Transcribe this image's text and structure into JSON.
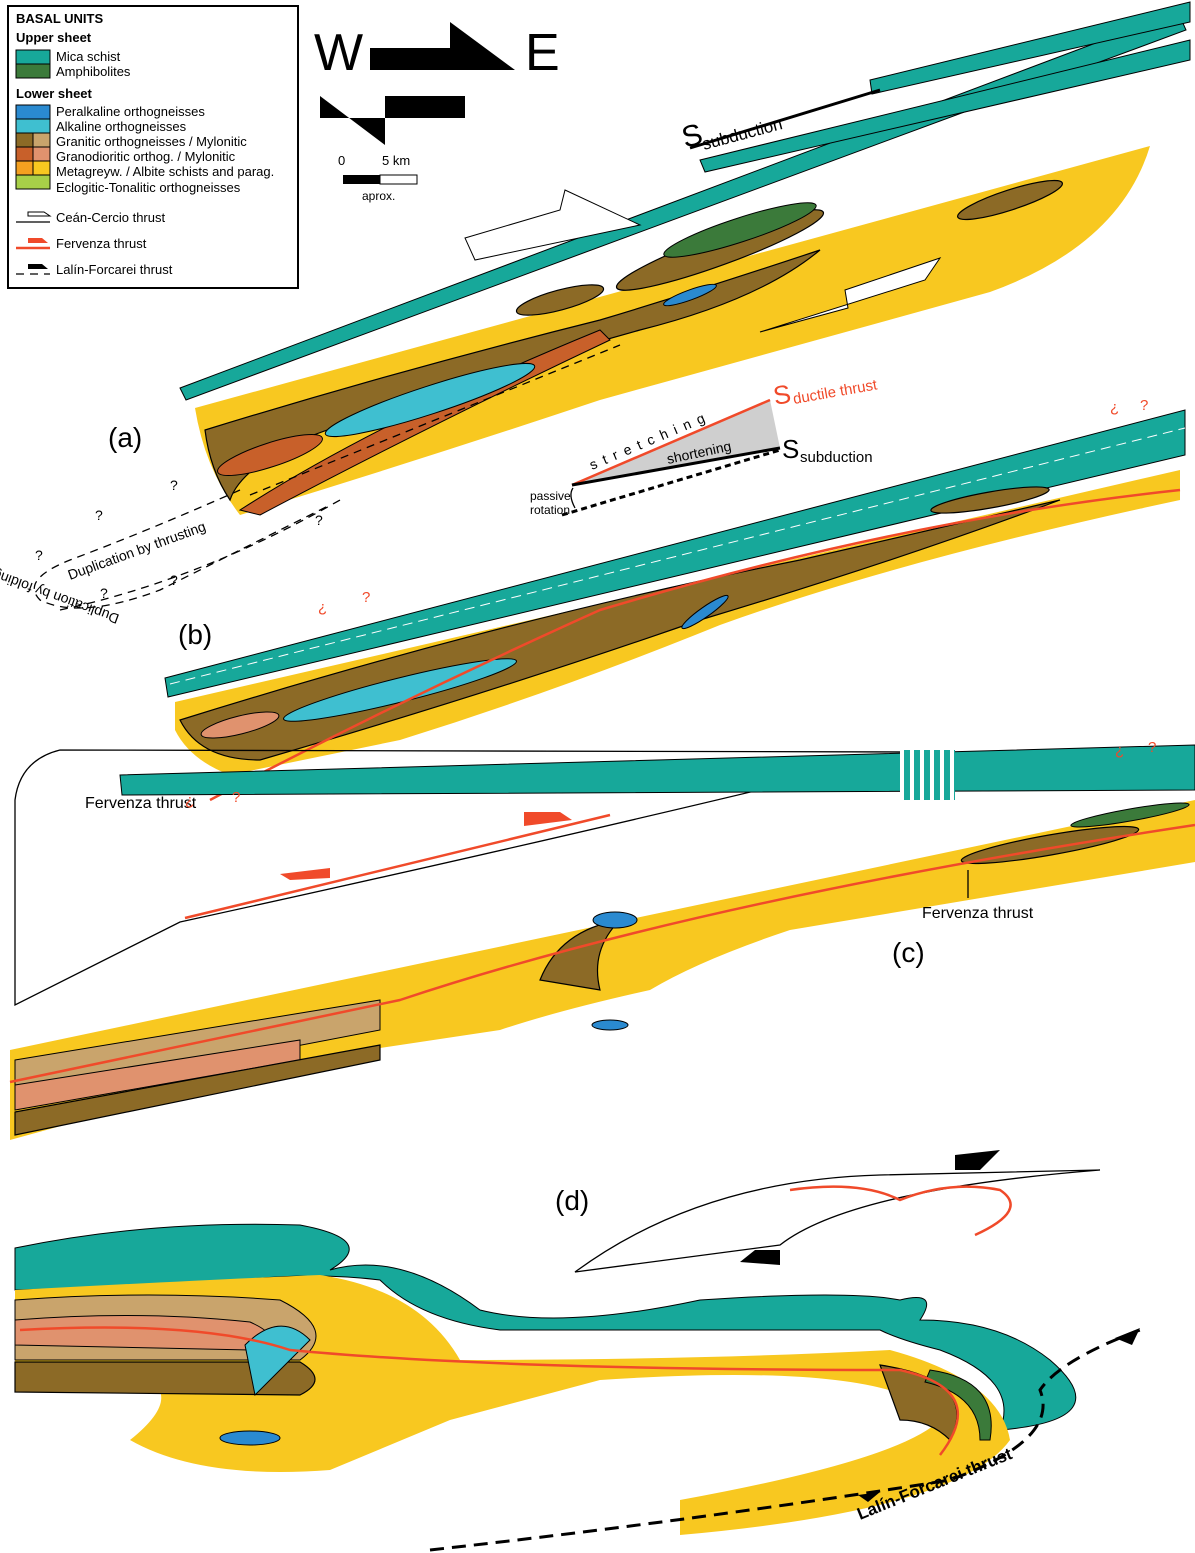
{
  "legend": {
    "title": "BASAL UNITS",
    "upper_sheet": {
      "heading": "Upper sheet",
      "items": [
        "Mica schist",
        "Amphibolites"
      ]
    },
    "lower_sheet": {
      "heading": "Lower sheet",
      "items": [
        "Peralkaline orthogneisses",
        "Alkaline orthogneisses",
        "Granitic orthogneisses / Mylonitic",
        "Granodioritic orthog. / Mylonitic",
        "Metagreyw. / Albite schists and parag.",
        "Eclogitic-Tonalitic orthogneisses"
      ]
    },
    "thrusts": [
      "Ceán-Cercio thrust",
      "Fervenza thrust",
      "Lalín-Forcarei thrust"
    ]
  },
  "compass": {
    "west": "W",
    "east": "E"
  },
  "scale": {
    "start": "0",
    "end": "5 km",
    "note": "aprox."
  },
  "panels": {
    "a": "(a)",
    "b": "(b)",
    "c": "(c)",
    "d": "(d)"
  },
  "labels": {
    "s_subduction": {
      "symbol": "S",
      "subscript": "subduction"
    },
    "s_ductile": {
      "symbol": "S",
      "subscript": "ductile thrust"
    },
    "stretching": "stretching",
    "shortening": "shortening",
    "passive_rotation": [
      "passive",
      "rotation"
    ],
    "duplication_thrusting": "Duplication by thrusting",
    "duplication_folding": "Duplication by folding",
    "fervenza_b": "Fervenza thrust",
    "fervenza_c": "Fervenza thrust",
    "lalin": "Lalín-Forcarei thrust",
    "question": "?",
    "inverted_question": "¿"
  }
}
